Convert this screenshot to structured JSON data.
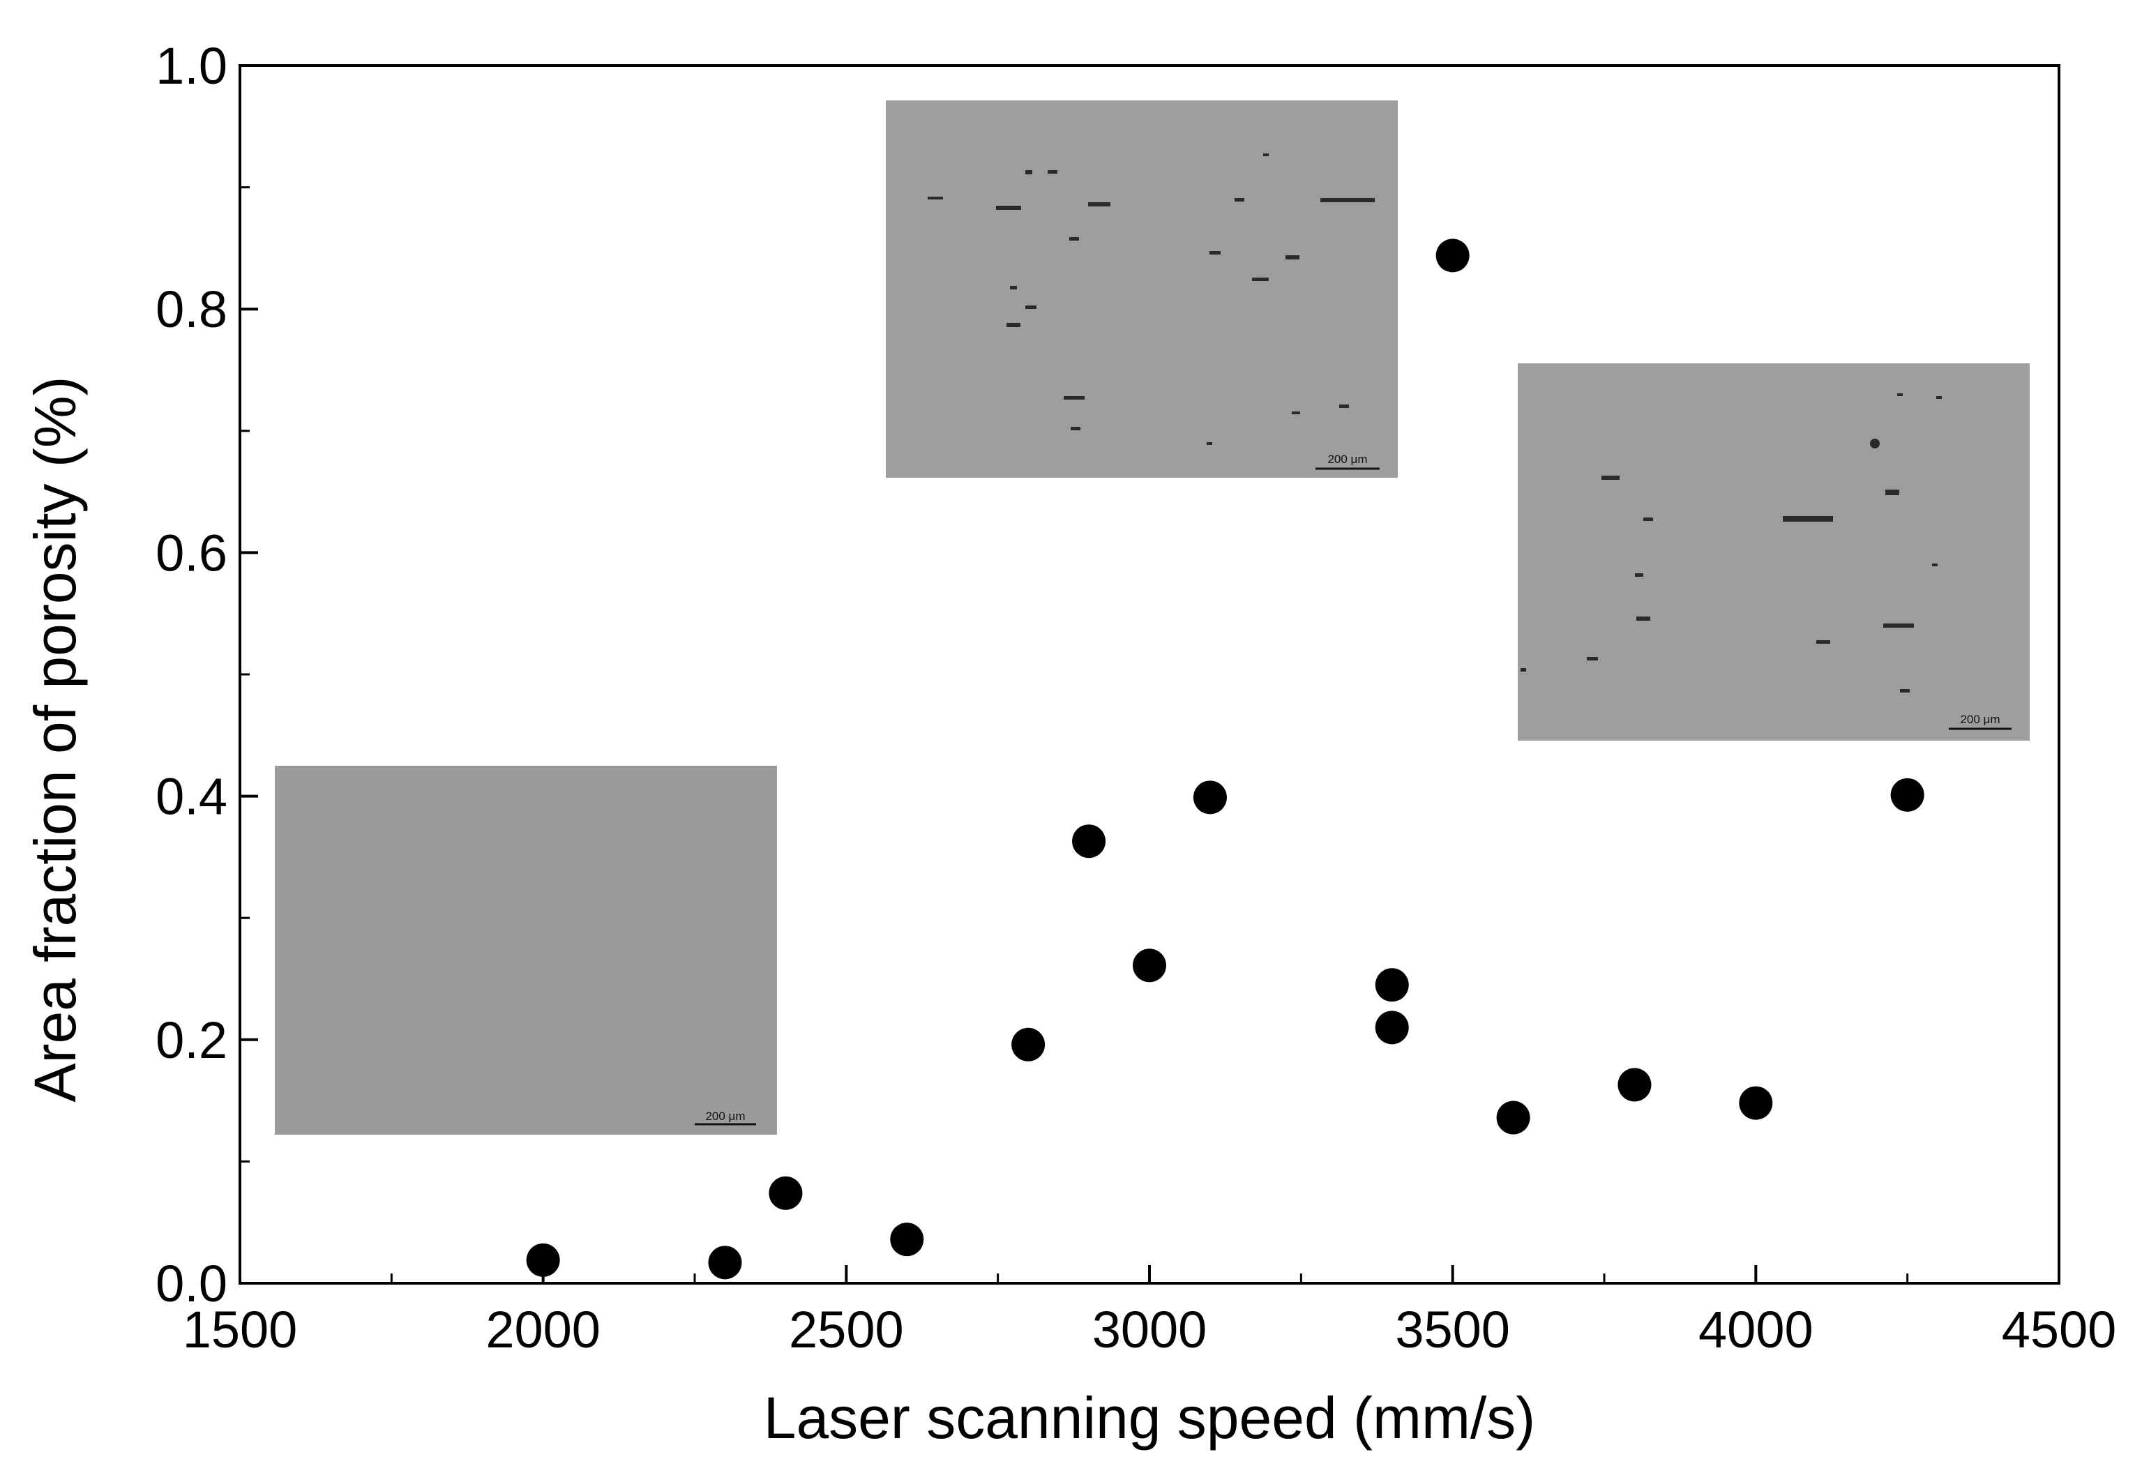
{
  "chart_data": {
    "type": "scatter",
    "title": "",
    "xlabel": "Laser scanning speed (mm/s)",
    "ylabel": "Area fraction of porosity (%)",
    "xlim": [
      1500,
      4500
    ],
    "ylim": [
      0.0,
      1.0
    ],
    "x_ticks": [
      "1500",
      "2000",
      "2500",
      "3000",
      "3500",
      "4000",
      "4500"
    ],
    "y_ticks": [
      "0.0",
      "0.2",
      "0.4",
      "0.6",
      "0.8",
      "1.0"
    ],
    "grid": false,
    "legend": "none",
    "marker_color": "#000000",
    "series": [
      {
        "points": [
          {
            "x": 2000,
            "y": 0.019
          },
          {
            "x": 2300,
            "y": 0.017
          },
          {
            "x": 2400,
            "y": 0.074
          },
          {
            "x": 2600,
            "y": 0.036
          },
          {
            "x": 2800,
            "y": 0.196
          },
          {
            "x": 2900,
            "y": 0.363
          },
          {
            "x": 3000,
            "y": 0.261
          },
          {
            "x": 3100,
            "y": 0.399
          },
          {
            "x": 3400,
            "y": 0.245
          },
          {
            "x": 3400,
            "y": 0.21
          },
          {
            "x": 3500,
            "y": 0.844
          },
          {
            "x": 3600,
            "y": 0.136
          },
          {
            "x": 3800,
            "y": 0.163
          },
          {
            "x": 4000,
            "y": 0.148
          },
          {
            "x": 4250,
            "y": 0.401
          }
        ]
      }
    ],
    "insets": [
      {
        "name": "micrograph-low",
        "scale_bar": "200 μm",
        "background": "#9b9b9b"
      },
      {
        "name": "micrograph-mid",
        "scale_bar": "200 μm",
        "background": "#9e9e9e"
      },
      {
        "name": "micrograph-high",
        "scale_bar": "200 μm",
        "background": "#9e9e9e"
      }
    ]
  }
}
